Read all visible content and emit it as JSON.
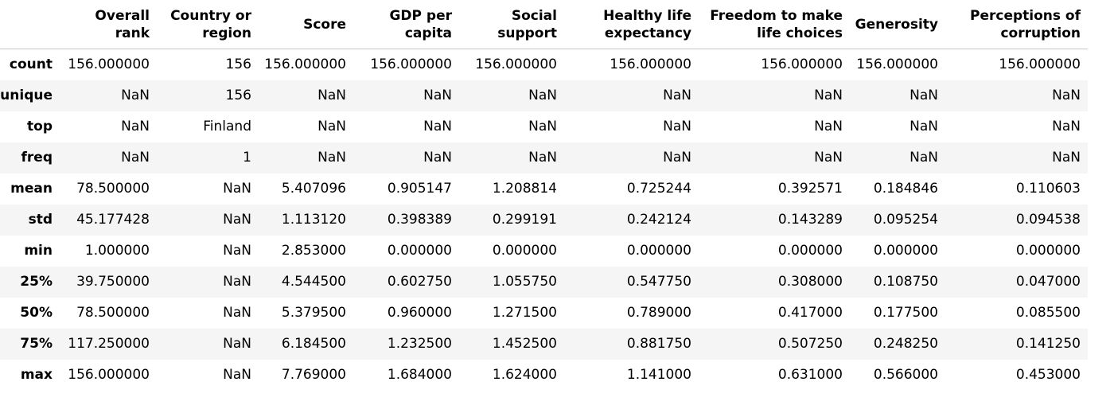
{
  "table": {
    "index_header": "",
    "columns": [
      "Overall rank",
      "Country or region",
      "Score",
      "GDP per capita",
      "Social support",
      "Healthy life expectancy",
      "Freedom to make life choices",
      "Generosity",
      "Perceptions of corruption"
    ],
    "rows": [
      {
        "label": "count",
        "cells": [
          "156.000000",
          "156",
          "156.000000",
          "156.000000",
          "156.000000",
          "156.000000",
          "156.000000",
          "156.000000",
          "156.000000"
        ]
      },
      {
        "label": "unique",
        "cells": [
          "NaN",
          "156",
          "NaN",
          "NaN",
          "NaN",
          "NaN",
          "NaN",
          "NaN",
          "NaN"
        ]
      },
      {
        "label": "top",
        "cells": [
          "NaN",
          "Finland",
          "NaN",
          "NaN",
          "NaN",
          "NaN",
          "NaN",
          "NaN",
          "NaN"
        ]
      },
      {
        "label": "freq",
        "cells": [
          "NaN",
          "1",
          "NaN",
          "NaN",
          "NaN",
          "NaN",
          "NaN",
          "NaN",
          "NaN"
        ]
      },
      {
        "label": "mean",
        "cells": [
          "78.500000",
          "NaN",
          "5.407096",
          "0.905147",
          "1.208814",
          "0.725244",
          "0.392571",
          "0.184846",
          "0.110603"
        ]
      },
      {
        "label": "std",
        "cells": [
          "45.177428",
          "NaN",
          "1.113120",
          "0.398389",
          "0.299191",
          "0.242124",
          "0.143289",
          "0.095254",
          "0.094538"
        ]
      },
      {
        "label": "min",
        "cells": [
          "1.000000",
          "NaN",
          "2.853000",
          "0.000000",
          "0.000000",
          "0.000000",
          "0.000000",
          "0.000000",
          "0.000000"
        ]
      },
      {
        "label": "25%",
        "cells": [
          "39.750000",
          "NaN",
          "4.544500",
          "0.602750",
          "1.055750",
          "0.547750",
          "0.308000",
          "0.108750",
          "0.047000"
        ]
      },
      {
        "label": "50%",
        "cells": [
          "78.500000",
          "NaN",
          "5.379500",
          "0.960000",
          "1.271500",
          "0.789000",
          "0.417000",
          "0.177500",
          "0.085500"
        ]
      },
      {
        "label": "75%",
        "cells": [
          "117.250000",
          "NaN",
          "6.184500",
          "1.232500",
          "1.452500",
          "0.881750",
          "0.507250",
          "0.248250",
          "0.141250"
        ]
      },
      {
        "label": "max",
        "cells": [
          "156.000000",
          "NaN",
          "7.769000",
          "1.684000",
          "1.624000",
          "1.141000",
          "0.631000",
          "0.566000",
          "0.453000"
        ]
      }
    ]
  },
  "colors": {
    "stripe": "#f5f5f5",
    "header_border": "#c8c8c8",
    "text": "#000000"
  }
}
